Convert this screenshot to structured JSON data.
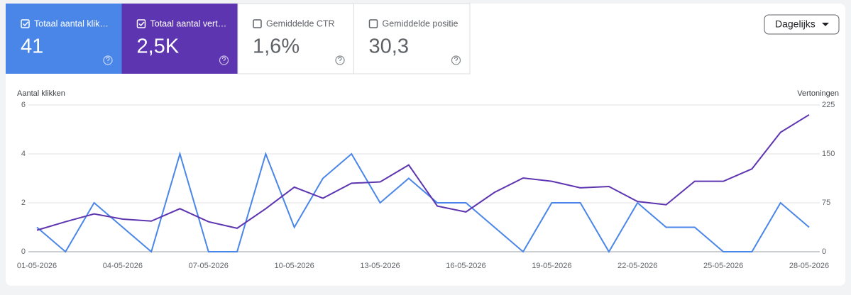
{
  "cards": [
    {
      "label": "Totaal aantal klik…",
      "value": "41",
      "checked": true,
      "color": "#4a86e8"
    },
    {
      "label": "Totaal aantal vert…",
      "value": "2,5K",
      "checked": true,
      "color": "#5e35b1"
    },
    {
      "label": "Gemiddelde CTR",
      "value": "1,6%",
      "checked": false,
      "color": "#ffffff"
    },
    {
      "label": "Gemiddelde positie",
      "value": "30,3",
      "checked": false,
      "color": "#ffffff"
    }
  ],
  "period_select": "Dagelijks",
  "chart_data": {
    "type": "line",
    "y_label": "Aantal klikken",
    "y2_label": "Vertoningen",
    "x": [
      "01-05-2026",
      null,
      null,
      "04-05-2026",
      null,
      null,
      "07-05-2026",
      null,
      null,
      "10-05-2026",
      null,
      null,
      "13-05-2026",
      null,
      null,
      "16-05-2026",
      null,
      null,
      "19-05-2026",
      null,
      null,
      "22-05-2026",
      null,
      null,
      "25-05-2026",
      null,
      null,
      "28-05-2026"
    ],
    "series": [
      {
        "color": "#4a86e8",
        "values": [
          1,
          0,
          2,
          1,
          0,
          4,
          0,
          0,
          4,
          1,
          3,
          4,
          2,
          3,
          2,
          2,
          1,
          0,
          2,
          2,
          0,
          2,
          1,
          1,
          0,
          0,
          2,
          1
        ]
      },
      {
        "color": "#5e35b1",
        "axis": "y2",
        "values": [
          33,
          46,
          58,
          50,
          47,
          66,
          46,
          36,
          66,
          99,
          82,
          105,
          107,
          133,
          70,
          61,
          91,
          113,
          108,
          98,
          100,
          77,
          72,
          108,
          108,
          127,
          183,
          210
        ]
      }
    ],
    "ylim": [
      0,
      6
    ],
    "yticks": [
      0,
      2,
      4,
      6
    ],
    "y2lim": [
      0,
      225
    ],
    "y2ticks": [
      0,
      75,
      150,
      225
    ],
    "grid": true
  }
}
